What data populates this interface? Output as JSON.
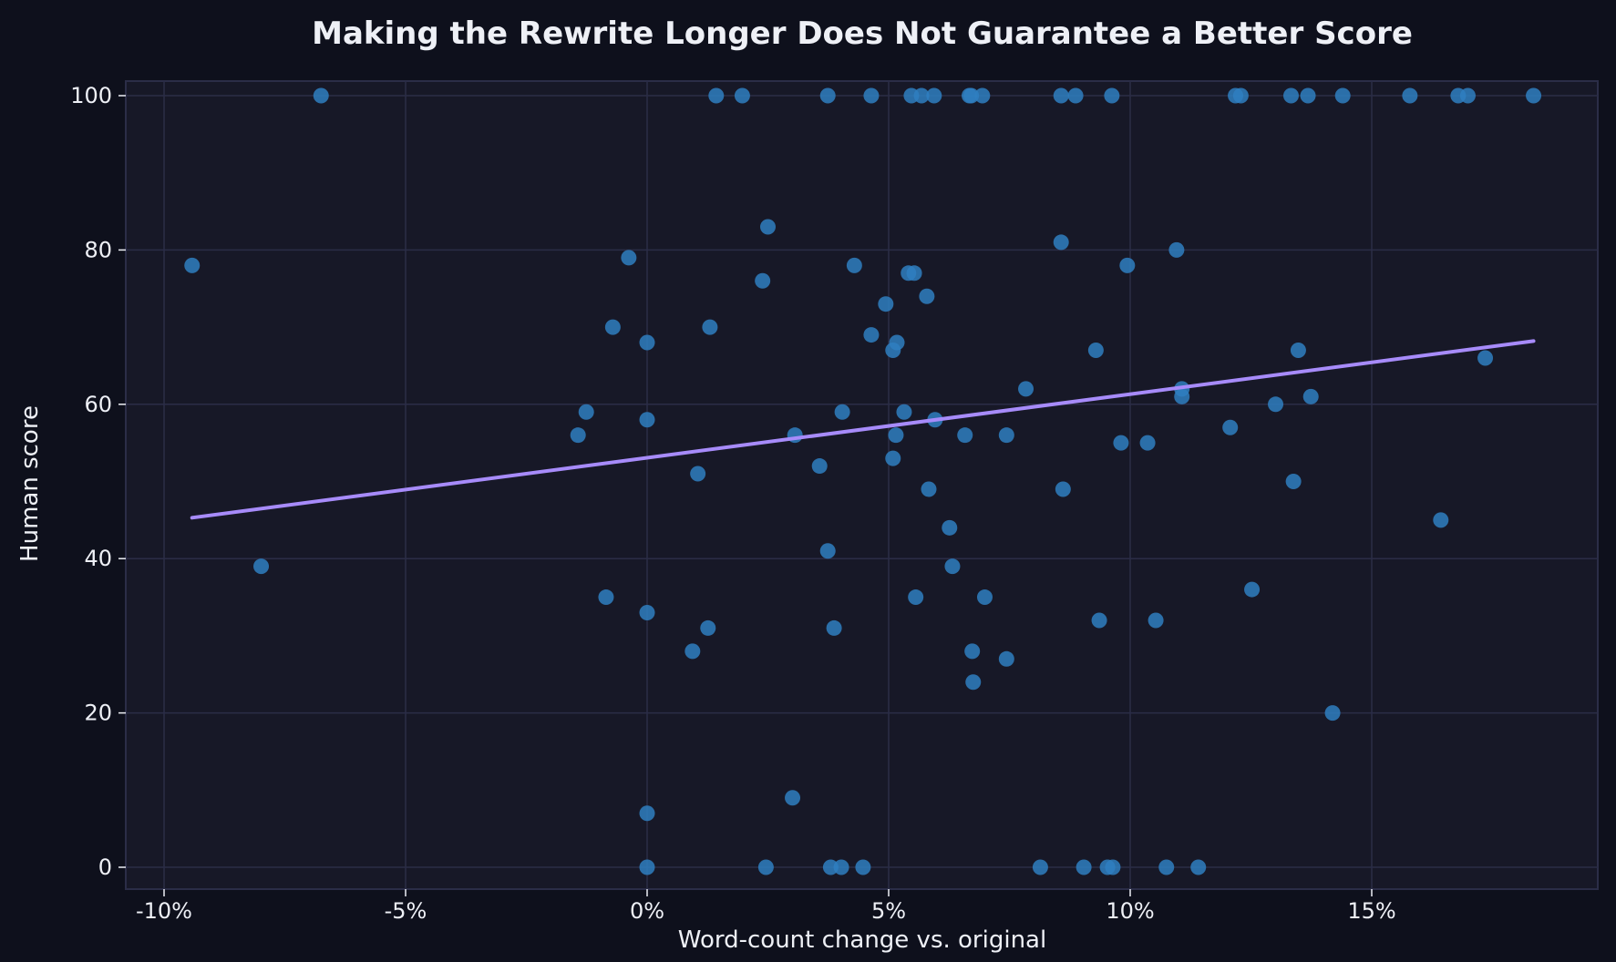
{
  "chart_data": {
    "type": "scatter",
    "title": "Making the Rewrite Longer Does Not Guarantee a Better Score",
    "xlabel": "Word-count change vs. original",
    "ylabel": "Human score",
    "xlim": [
      -10.8,
      19.6
    ],
    "ylim": [
      -2,
      102
    ],
    "x_ticks": [
      -10,
      -5,
      0,
      5,
      10,
      15
    ],
    "x_tick_labels": [
      "-10%",
      "-5%",
      "0%",
      "5%",
      "10%",
      "15%"
    ],
    "y_ticks": [
      0,
      20,
      40,
      60,
      80,
      100
    ],
    "y_tick_labels": [
      "0",
      "20",
      "40",
      "60",
      "80",
      "100"
    ],
    "grid": true,
    "colors": {
      "background": "#0e101c",
      "plot_background": "#171827",
      "grid": "#2b2d47",
      "points": "#2f7fc1",
      "trend": "#a78bfa"
    },
    "points": [
      [
        -6.75,
        100
      ],
      [
        1.43,
        100
      ],
      [
        1.97,
        100
      ],
      [
        3.74,
        100
      ],
      [
        4.64,
        100
      ],
      [
        5.47,
        100
      ],
      [
        5.68,
        100
      ],
      [
        5.94,
        100
      ],
      [
        6.67,
        100
      ],
      [
        6.71,
        100
      ],
      [
        6.94,
        100
      ],
      [
        8.57,
        100
      ],
      [
        8.87,
        100
      ],
      [
        9.62,
        100
      ],
      [
        12.18,
        100
      ],
      [
        12.29,
        100
      ],
      [
        13.33,
        100
      ],
      [
        13.68,
        100
      ],
      [
        14.4,
        100
      ],
      [
        15.79,
        100
      ],
      [
        16.79,
        100
      ],
      [
        16.99,
        100
      ],
      [
        18.35,
        100
      ],
      [
        0,
        0
      ],
      [
        2.46,
        0
      ],
      [
        3.8,
        0
      ],
      [
        4.02,
        0
      ],
      [
        4.47,
        0
      ],
      [
        8.14,
        0
      ],
      [
        9.04,
        0
      ],
      [
        9.53,
        0
      ],
      [
        9.64,
        0
      ],
      [
        10.75,
        0
      ],
      [
        11.41,
        0
      ],
      [
        -9.42,
        78
      ],
      [
        -7.99,
        39
      ],
      [
        -0.38,
        79
      ],
      [
        -0.71,
        70
      ],
      [
        -1.26,
        59
      ],
      [
        -1.43,
        56
      ],
      [
        -0.85,
        35
      ],
      [
        0,
        68
      ],
      [
        0,
        58
      ],
      [
        0,
        33
      ],
      [
        0,
        7
      ],
      [
        1.05,
        51
      ],
      [
        1.3,
        70
      ],
      [
        0.94,
        28
      ],
      [
        1.26,
        31
      ],
      [
        2.5,
        83
      ],
      [
        2.39,
        76
      ],
      [
        3.06,
        56
      ],
      [
        3.01,
        9
      ],
      [
        3.57,
        52
      ],
      [
        3.74,
        41
      ],
      [
        3.87,
        31
      ],
      [
        4.04,
        59
      ],
      [
        4.29,
        78
      ],
      [
        4.64,
        69
      ],
      [
        4.94,
        73
      ],
      [
        5.09,
        67
      ],
      [
        5.17,
        68
      ],
      [
        5.15,
        56
      ],
      [
        5.09,
        53
      ],
      [
        5.32,
        59
      ],
      [
        5.41,
        77
      ],
      [
        5.53,
        77
      ],
      [
        5.79,
        74
      ],
      [
        5.96,
        58
      ],
      [
        5.83,
        49
      ],
      [
        5.56,
        35
      ],
      [
        6.26,
        44
      ],
      [
        6.32,
        39
      ],
      [
        6.58,
        56
      ],
      [
        6.73,
        28
      ],
      [
        6.75,
        24
      ],
      [
        6.99,
        35
      ],
      [
        7.44,
        56
      ],
      [
        7.44,
        27
      ],
      [
        7.84,
        62
      ],
      [
        8.57,
        81
      ],
      [
        8.61,
        49
      ],
      [
        9.29,
        67
      ],
      [
        9.36,
        32
      ],
      [
        9.94,
        78
      ],
      [
        9.81,
        55
      ],
      [
        10.36,
        55
      ],
      [
        10.53,
        32
      ],
      [
        10.96,
        80
      ],
      [
        11.07,
        62
      ],
      [
        11.07,
        61
      ],
      [
        12.07,
        57
      ],
      [
        12.52,
        36
      ],
      [
        13.01,
        60
      ],
      [
        13.38,
        50
      ],
      [
        13.48,
        67
      ],
      [
        13.74,
        61
      ],
      [
        14.19,
        20
      ],
      [
        16.43,
        45
      ],
      [
        17.35,
        66
      ]
    ],
    "trend_line": {
      "x": [
        -9.42,
        18.35
      ],
      "y": [
        45.3,
        68.2
      ]
    }
  }
}
